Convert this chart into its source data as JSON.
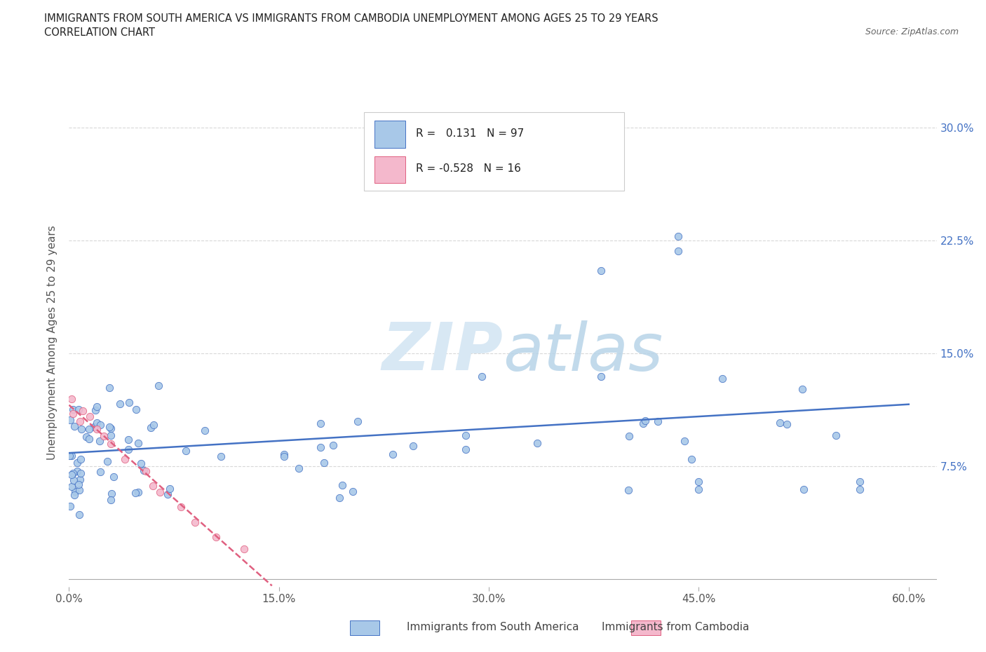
{
  "title_line1": "IMMIGRANTS FROM SOUTH AMERICA VS IMMIGRANTS FROM CAMBODIA UNEMPLOYMENT AMONG AGES 25 TO 29 YEARS",
  "title_line2": "CORRELATION CHART",
  "source_text": "Source: ZipAtlas.com",
  "ylabel": "Unemployment Among Ages 25 to 29 years",
  "xlim": [
    0.0,
    0.62
  ],
  "ylim": [
    -0.005,
    0.32
  ],
  "xtick_labels": [
    "0.0%",
    "15.0%",
    "30.0%",
    "45.0%",
    "60.0%"
  ],
  "xtick_values": [
    0.0,
    0.15,
    0.3,
    0.45,
    0.6
  ],
  "ytick_labels": [
    "7.5%",
    "15.0%",
    "22.5%",
    "30.0%"
  ],
  "ytick_values": [
    0.075,
    0.15,
    0.225,
    0.3
  ],
  "r_south_america": 0.131,
  "n_south_america": 97,
  "r_cambodia": -0.528,
  "n_cambodia": 16,
  "color_south_america": "#a8c8e8",
  "color_cambodia": "#f4b8cc",
  "line_color_south_america": "#4472c4",
  "line_color_cambodia": "#e06080",
  "watermark_color": "#d8e8f4",
  "background_color": "#ffffff",
  "grid_color": "#d8d8d8",
  "legend_r_color": "#4472c4",
  "bottom_legend_text_color": "#444444"
}
